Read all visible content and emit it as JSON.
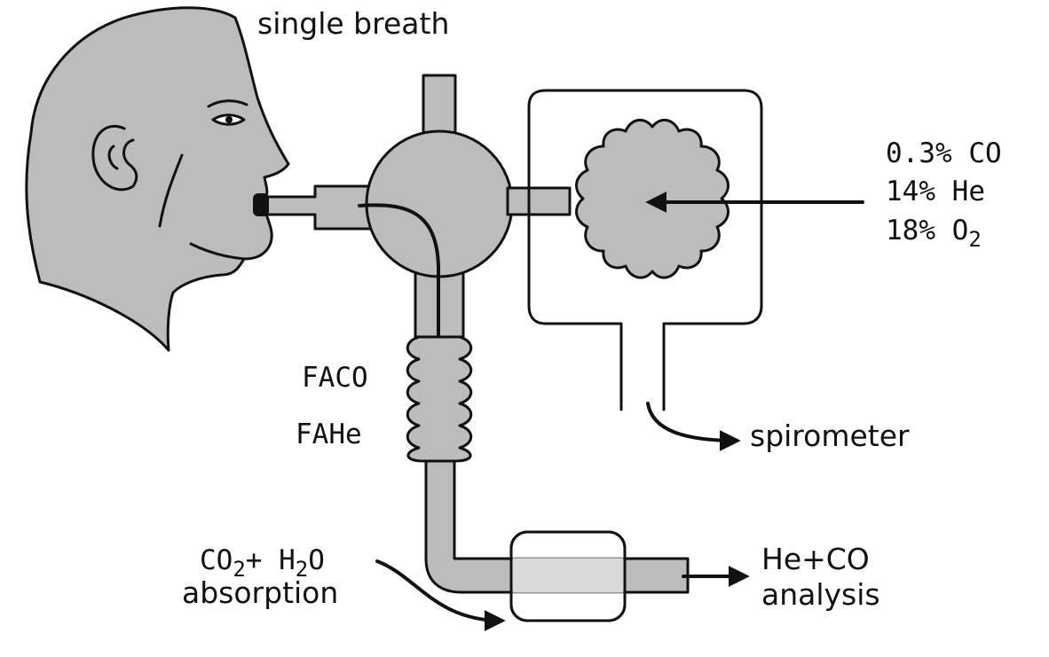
{
  "labels": {
    "single_breath": "single breath",
    "mix_co": "0.3% CO",
    "mix_he": "14% He",
    "mix_o2": "18% O",
    "mix_o2_sub": "2",
    "faco": "FACO",
    "fahe": "FAHe",
    "spirometer": "spirometer",
    "absorb_co": "CO",
    "absorb_co_sub": "2",
    "absorb_plus": "+ H",
    "absorb_h_sub": "2",
    "absorb_o": "O",
    "absorption": "absorption",
    "analysis_top": "He+CO",
    "analysis_bottom": "analysis"
  },
  "colors": {
    "fill_gray": "#bcbcbc",
    "stroke": "#111111",
    "background": "#ffffff"
  }
}
